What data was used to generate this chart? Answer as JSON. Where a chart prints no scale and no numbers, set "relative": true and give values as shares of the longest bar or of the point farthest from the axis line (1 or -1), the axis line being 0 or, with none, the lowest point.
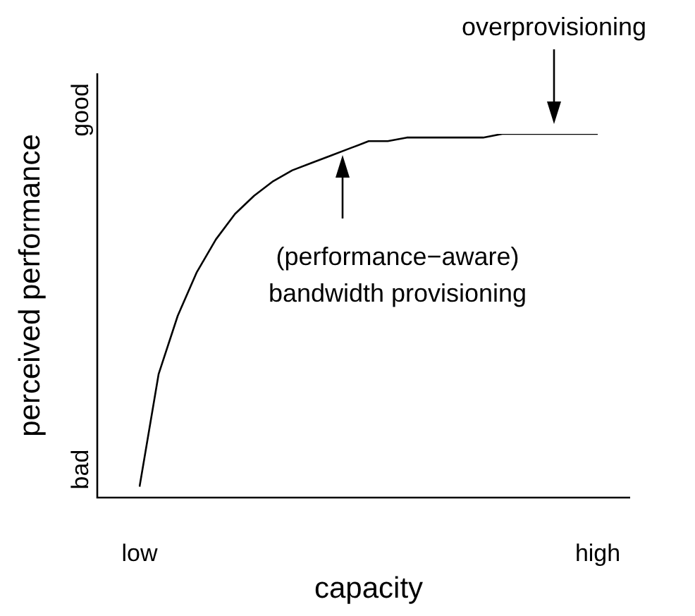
{
  "chart_data": {
    "type": "line",
    "relative": true,
    "xlabel": "capacity",
    "ylabel": "perceived performance",
    "categories": [
      "low",
      null,
      null,
      null,
      null,
      null,
      null,
      null,
      null,
      null,
      null,
      null,
      null,
      null,
      null,
      null,
      null,
      null,
      null,
      null,
      null,
      null,
      null,
      null,
      "high"
    ],
    "series": [
      {
        "color": "#000000",
        "values": [
          0.03,
          0.34,
          0.5,
          0.62,
          0.71,
          0.78,
          0.83,
          0.87,
          0.9,
          0.92,
          0.94,
          0.96,
          0.98,
          0.98,
          0.99,
          0.99,
          0.99,
          0.99,
          0.99,
          1.0,
          1.0,
          1.0,
          1.0,
          1.0,
          1.0
        ]
      }
    ],
    "annotations": [
      "bad",
      "good",
      "overprovisioning",
      "(performance−aware)\nbandwidth provisioning"
    ],
    "grid": false,
    "legend": false,
    "marker": "none",
    "line_style": "solid"
  }
}
